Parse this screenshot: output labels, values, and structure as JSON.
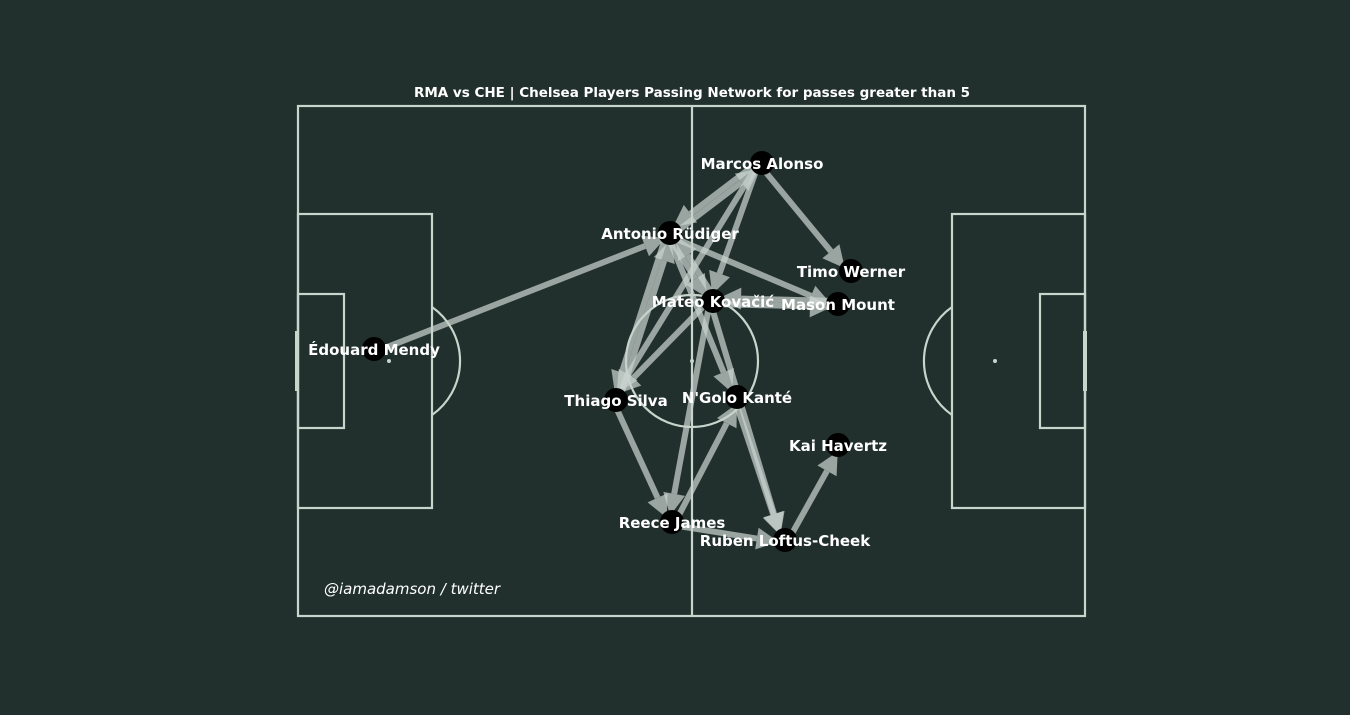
{
  "title": "RMA vs CHE | Chelsea Players Passing Network for passes greater than 5",
  "credit": "@iamadamson / twitter",
  "colors": {
    "background": "#22302d",
    "pitch_lines": "#c7d5cc",
    "node": "#000000",
    "label": "#ffffff",
    "arrow": "#c9d2ce"
  },
  "players": [
    {
      "id": "mendy",
      "name": "Édouard Mendy"
    },
    {
      "id": "rudiger",
      "name": "Antonio Rüdiger"
    },
    {
      "id": "alonso",
      "name": "Marcos Alonso"
    },
    {
      "id": "werner",
      "name": "Timo Werner"
    },
    {
      "id": "mount",
      "name": "Mason Mount"
    },
    {
      "id": "kovacic",
      "name": "Mateo Kovačić"
    },
    {
      "id": "silva",
      "name": "Thiago Silva"
    },
    {
      "id": "kante",
      "name": "N'Golo Kanté"
    },
    {
      "id": "havertz",
      "name": "Kai Havertz"
    },
    {
      "id": "james",
      "name": "Reece James"
    },
    {
      "id": "loftus",
      "name": "Ruben Loftus-Cheek"
    }
  ],
  "passes": [
    {
      "from": "mendy",
      "to": "rudiger"
    },
    {
      "from": "rudiger",
      "to": "alonso"
    },
    {
      "from": "alonso",
      "to": "rudiger"
    },
    {
      "from": "alonso",
      "to": "werner"
    },
    {
      "from": "alonso",
      "to": "kovacic"
    },
    {
      "from": "alonso",
      "to": "silva"
    },
    {
      "from": "rudiger",
      "to": "mount"
    },
    {
      "from": "rudiger",
      "to": "kovacic"
    },
    {
      "from": "kovacic",
      "to": "rudiger"
    },
    {
      "from": "rudiger",
      "to": "silva"
    },
    {
      "from": "silva",
      "to": "rudiger"
    },
    {
      "from": "rudiger",
      "to": "kante"
    },
    {
      "from": "kovacic",
      "to": "mount"
    },
    {
      "from": "mount",
      "to": "kovacic"
    },
    {
      "from": "kovacic",
      "to": "silva"
    },
    {
      "from": "kovacic",
      "to": "james"
    },
    {
      "from": "kovacic",
      "to": "loftus"
    },
    {
      "from": "kante",
      "to": "loftus"
    },
    {
      "from": "silva",
      "to": "james"
    },
    {
      "from": "james",
      "to": "kante"
    },
    {
      "from": "james",
      "to": "loftus"
    },
    {
      "from": "loftus",
      "to": "havertz"
    }
  ]
}
